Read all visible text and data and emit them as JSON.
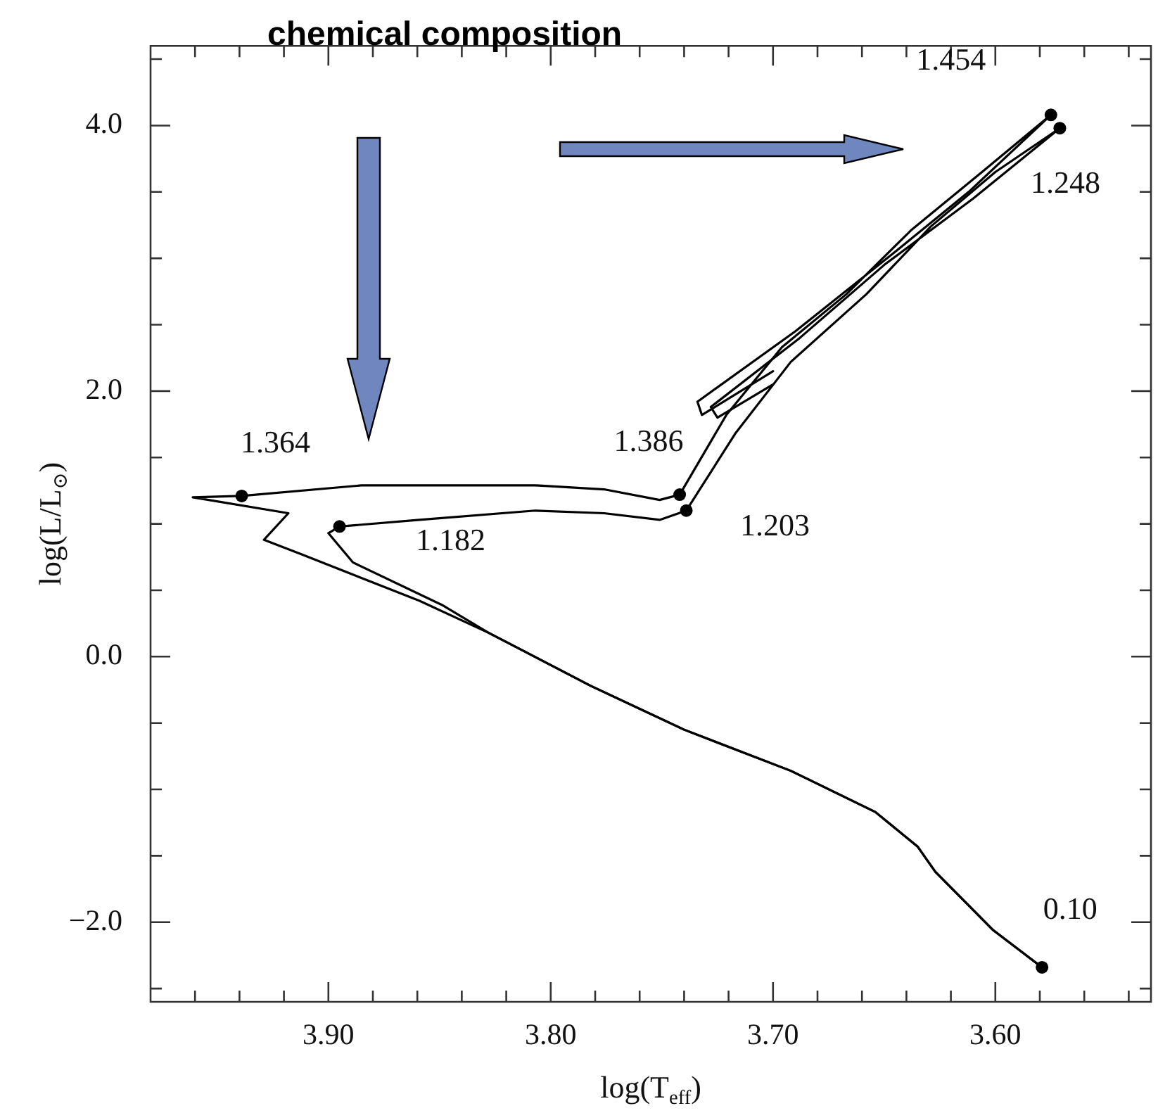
{
  "chart_data": {
    "type": "line",
    "xlabel": "log(T$_{eff}$)",
    "ylabel": "log(L/L$_{⊙}$)",
    "xlim": [
      3.98,
      3.53
    ],
    "xticks": [
      {
        "value": 3.96,
        "label": null
      },
      {
        "value": 3.94,
        "label": null
      },
      {
        "value": 3.92,
        "label": null
      },
      {
        "value": 3.9,
        "label": "3.90"
      },
      {
        "value": 3.88,
        "label": null
      },
      {
        "value": 3.86,
        "label": null
      },
      {
        "value": 3.84,
        "label": null
      },
      {
        "value": 3.82,
        "label": null
      },
      {
        "value": 3.8,
        "label": "3.80"
      },
      {
        "value": 3.78,
        "label": null
      },
      {
        "value": 3.76,
        "label": null
      },
      {
        "value": 3.74,
        "label": null
      },
      {
        "value": 3.72,
        "label": null
      },
      {
        "value": 3.7,
        "label": "3.70"
      },
      {
        "value": 3.68,
        "label": null
      },
      {
        "value": 3.66,
        "label": null
      },
      {
        "value": 3.64,
        "label": null
      },
      {
        "value": 3.62,
        "label": null
      },
      {
        "value": 3.6,
        "label": "3.60"
      },
      {
        "value": 3.58,
        "label": null
      },
      {
        "value": 3.56,
        "label": null
      },
      {
        "value": 3.54,
        "label": null
      }
    ],
    "ylim": [
      -2.6,
      4.6
    ],
    "yticks": [
      {
        "value": -2.5,
        "label": null
      },
      {
        "value": -2,
        "label": "−2.0"
      },
      {
        "value": -1.5,
        "label": null
      },
      {
        "value": -1,
        "label": null
      },
      {
        "value": -0.5,
        "label": null
      },
      {
        "value": 0,
        "label": "0.0"
      },
      {
        "value": 0.5,
        "label": null
      },
      {
        "value": 1,
        "label": null
      },
      {
        "value": 1.5,
        "label": null
      },
      {
        "value": 2,
        "label": "2.0"
      },
      {
        "value": 2.5,
        "label": null
      },
      {
        "value": 3,
        "label": null
      },
      {
        "value": 3.5,
        "label": null
      },
      {
        "value": 4,
        "label": "4.0"
      },
      {
        "value": 4.5,
        "label": null
      }
    ],
    "grid": false,
    "legend": false,
    "series": [
      {
        "type": "line",
        "color": "#000000",
        "marker": "none",
        "x": [
          3.579,
          3.601,
          3.627,
          3.635,
          3.654,
          3.692,
          3.74,
          3.782,
          3.828,
          3.859,
          3.912,
          3.929,
          3.918,
          3.961,
          3.939,
          3.885,
          3.807,
          3.776,
          3.751,
          3.742,
          3.721,
          3.696,
          3.667,
          3.638,
          3.606,
          3.575,
          3.612,
          3.645,
          3.69,
          3.734,
          3.732,
          3.7
        ],
        "values": [
          -2.34,
          -2.06,
          -1.62,
          -1.43,
          -1.17,
          -0.86,
          -0.55,
          -0.22,
          0.18,
          0.42,
          0.77,
          0.88,
          1.08,
          1.2,
          1.21,
          1.29,
          1.29,
          1.26,
          1.18,
          1.22,
          1.82,
          2.33,
          2.73,
          3.21,
          3.65,
          4.08,
          3.5,
          3.05,
          2.45,
          1.92,
          1.82,
          2.15
        ]
      },
      {
        "type": "line",
        "color": "#000000",
        "marker": "none",
        "x": [
          3.579,
          3.601,
          3.627,
          3.635,
          3.654,
          3.692,
          3.74,
          3.782,
          3.828,
          3.849,
          3.889,
          3.9,
          3.895,
          3.859,
          3.807,
          3.776,
          3.751,
          3.739,
          3.717,
          3.692,
          3.658,
          3.629,
          3.6,
          3.571,
          3.61,
          3.65,
          3.688,
          3.728,
          3.725,
          3.7
        ],
        "values": [
          -2.34,
          -2.06,
          -1.62,
          -1.43,
          -1.17,
          -0.86,
          -0.55,
          -0.22,
          0.18,
          0.39,
          0.71,
          0.93,
          0.98,
          1.03,
          1.1,
          1.08,
          1.03,
          1.1,
          1.68,
          2.22,
          2.73,
          3.24,
          3.65,
          3.98,
          3.45,
          2.95,
          2.4,
          1.88,
          1.8,
          2.05
        ]
      },
      {
        "type": "scatter",
        "color": "#000000",
        "marker": "circle",
        "x": [
          3.579,
          3.939,
          3.895,
          3.742,
          3.739,
          3.575,
          3.571
        ],
        "values": [
          -2.34,
          1.21,
          0.98,
          1.22,
          1.1,
          4.08,
          3.98
        ]
      }
    ],
    "annotations": [
      "chemical composition",
      {
        "text": "0.10",
        "x": 3.579,
        "y": -2.34
      },
      {
        "text": "1.364",
        "x": 3.939,
        "y": 1.21
      },
      {
        "text": "1.182",
        "x": 3.895,
        "y": 0.98
      },
      {
        "text": "1.386",
        "x": 3.742,
        "y": 1.22
      },
      {
        "text": "1.203",
        "x": 3.739,
        "y": 1.1
      },
      {
        "text": "1.454",
        "x": 3.575,
        "y": 4.08
      },
      {
        "text": "1.248",
        "x": 3.571,
        "y": 3.98
      }
    ]
  }
}
